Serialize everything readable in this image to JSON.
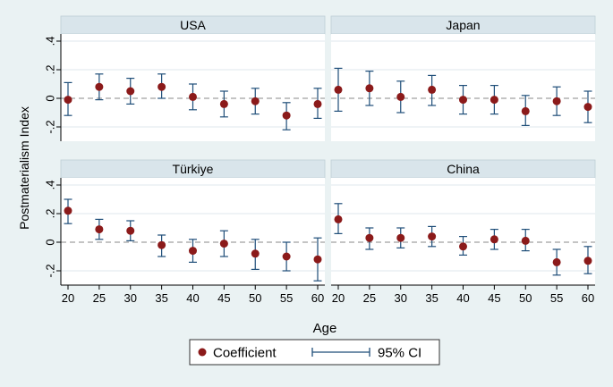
{
  "chart_data": {
    "type": "scatter",
    "subtype": "coefficient plot with 95% confidence intervals, 2x2 facets",
    "ylabel": "Postmaterialism Index",
    "xlabel": "Age",
    "x": [
      20,
      25,
      30,
      35,
      40,
      45,
      50,
      55,
      60
    ],
    "x_tick_labels": [
      "20",
      "25",
      "30",
      "35",
      "40",
      "45",
      "50",
      "55",
      "60"
    ],
    "ylim": [
      -0.3,
      0.45
    ],
    "y_ticks": [
      -0.2,
      0,
      0.2,
      0.4
    ],
    "y_tick_labels": [
      "-.2",
      "0",
      ".2",
      ".4"
    ],
    "reference_line": 0,
    "grid": true,
    "legend": {
      "placement": "bottom-center",
      "entries": [
        {
          "label": "Coefficient",
          "marker": "dot"
        },
        {
          "label": "95% CI",
          "marker": "capped-line"
        }
      ]
    },
    "colors": {
      "background": "#eaf2f3",
      "panel": "#ffffff",
      "strip": "#d9e5eb",
      "marker": "#8b1a1a",
      "ci": "#1f4e79",
      "reference": "#888888",
      "grid": "#dfe7ec"
    },
    "panels": [
      {
        "title": "USA",
        "coef": [
          -0.01,
          0.08,
          0.05,
          0.08,
          0.01,
          -0.04,
          -0.02,
          -0.12,
          -0.04
        ],
        "ci_low": [
          -0.12,
          -0.01,
          -0.04,
          0.0,
          -0.08,
          -0.13,
          -0.11,
          -0.22,
          -0.14
        ],
        "ci_high": [
          0.11,
          0.17,
          0.14,
          0.17,
          0.1,
          0.05,
          0.07,
          -0.03,
          0.07
        ]
      },
      {
        "title": "Japan",
        "coef": [
          0.06,
          0.07,
          0.01,
          0.06,
          -0.01,
          -0.01,
          -0.09,
          -0.02,
          -0.06
        ],
        "ci_low": [
          -0.09,
          -0.05,
          -0.1,
          -0.05,
          -0.11,
          -0.11,
          -0.19,
          -0.12,
          -0.17
        ],
        "ci_high": [
          0.21,
          0.19,
          0.12,
          0.16,
          0.09,
          0.09,
          0.02,
          0.08,
          0.05
        ]
      },
      {
        "title": "Türkiye",
        "coef": [
          0.22,
          0.09,
          0.08,
          -0.02,
          -0.06,
          -0.01,
          -0.08,
          -0.1,
          -0.12
        ],
        "ci_low": [
          0.13,
          0.02,
          0.01,
          -0.1,
          -0.14,
          -0.1,
          -0.19,
          -0.2,
          -0.27
        ],
        "ci_high": [
          0.3,
          0.16,
          0.15,
          0.05,
          0.02,
          0.08,
          0.02,
          0.0,
          0.03
        ]
      },
      {
        "title": "China",
        "coef": [
          0.16,
          0.03,
          0.03,
          0.04,
          -0.03,
          0.02,
          0.01,
          -0.14,
          -0.13
        ],
        "ci_low": [
          0.06,
          -0.05,
          -0.04,
          -0.03,
          -0.09,
          -0.05,
          -0.06,
          -0.23,
          -0.22
        ],
        "ci_high": [
          0.27,
          0.1,
          0.1,
          0.11,
          0.04,
          0.09,
          0.09,
          -0.05,
          -0.03
        ]
      }
    ]
  }
}
